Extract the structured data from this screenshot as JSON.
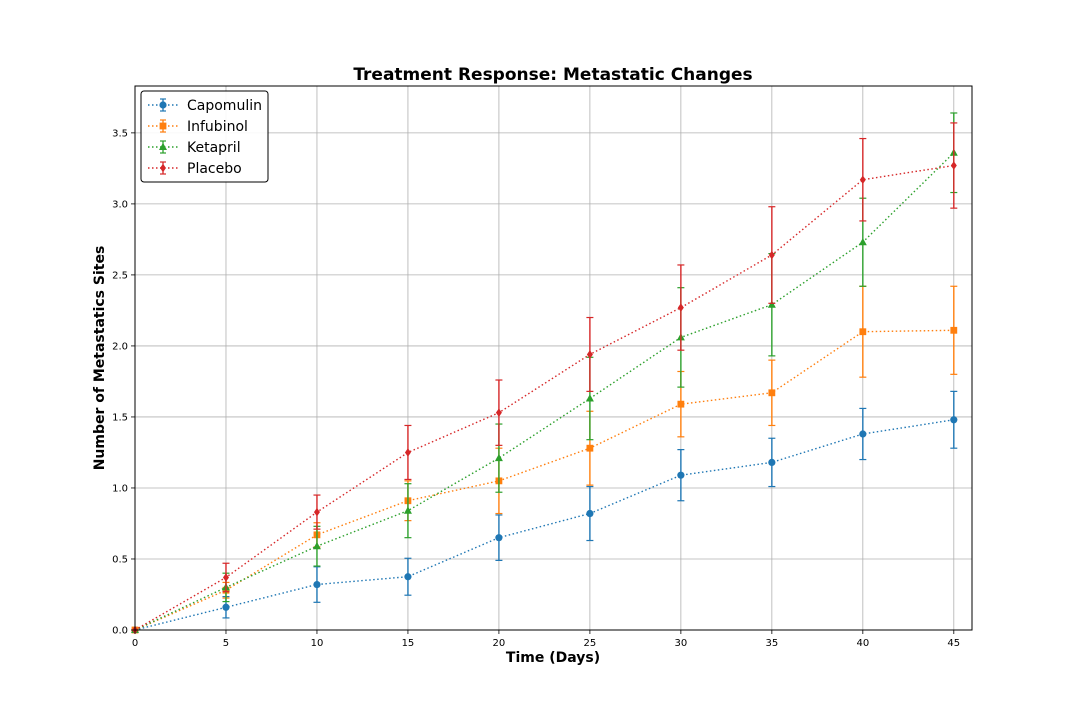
{
  "chart_data": {
    "type": "line",
    "title": "Treatment Response: Metastatic Changes",
    "xlabel": "Time (Days)",
    "ylabel": "Number of Metastatics Sites",
    "x": [
      0,
      5,
      10,
      15,
      20,
      25,
      30,
      35,
      40,
      45
    ],
    "xlim": [
      0,
      46
    ],
    "ylim": [
      0,
      3.83
    ],
    "xticks": [
      0,
      5,
      10,
      15,
      20,
      25,
      30,
      35,
      40,
      45
    ],
    "yticks": [
      0.0,
      0.5,
      1.0,
      1.5,
      2.0,
      2.5,
      3.0,
      3.5
    ],
    "ytick_labels": [
      "0.0",
      "0.5",
      "1.0",
      "1.5",
      "2.0",
      "2.5",
      "3.0",
      "3.5"
    ],
    "grid": true,
    "line_style": "dotted",
    "legend_position": "top-left",
    "series": [
      {
        "name": "Capomulin",
        "color": "#1f77b4",
        "marker": "circle",
        "values": [
          0.0,
          0.16,
          0.32,
          0.375,
          0.65,
          0.82,
          1.09,
          1.18,
          1.38,
          1.48
        ],
        "errors": [
          0.0,
          0.075,
          0.125,
          0.13,
          0.16,
          0.19,
          0.18,
          0.17,
          0.18,
          0.2
        ]
      },
      {
        "name": "Infubinol",
        "color": "#ff7f0e",
        "marker": "square",
        "values": [
          0.0,
          0.28,
          0.67,
          0.91,
          1.05,
          1.28,
          1.59,
          1.67,
          2.1,
          2.11
        ],
        "errors": [
          0.0,
          0.055,
          0.085,
          0.14,
          0.23,
          0.26,
          0.23,
          0.23,
          0.32,
          0.31
        ]
      },
      {
        "name": "Ketapril",
        "color": "#2ca02c",
        "marker": "triangle",
        "values": [
          0.0,
          0.3,
          0.59,
          0.84,
          1.21,
          1.63,
          2.06,
          2.29,
          2.73,
          3.36
        ],
        "errors": [
          0.0,
          0.1,
          0.14,
          0.19,
          0.24,
          0.29,
          0.35,
          0.36,
          0.31,
          0.28
        ]
      },
      {
        "name": "Placebo",
        "color": "#d62728",
        "marker": "diamond",
        "values": [
          0.0,
          0.37,
          0.83,
          1.25,
          1.53,
          1.94,
          2.27,
          2.64,
          3.17,
          3.27
        ],
        "errors": [
          0.0,
          0.1,
          0.12,
          0.19,
          0.23,
          0.26,
          0.3,
          0.34,
          0.29,
          0.3
        ]
      }
    ]
  }
}
